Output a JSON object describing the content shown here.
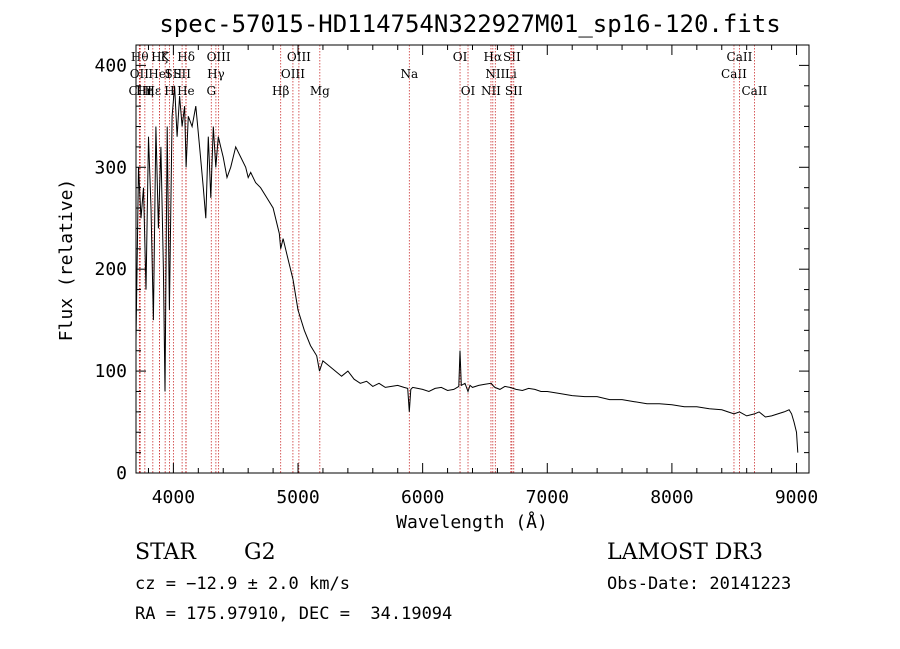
{
  "chart_data": {
    "type": "line",
    "title": "spec-57015-HD114754N322927M01_sp16-120.fits",
    "xlabel": "Wavelength (Å)",
    "ylabel": "Flux (relative)",
    "xlim": [
      3700,
      9100
    ],
    "ylim": [
      0,
      420
    ],
    "xticks": [
      4000,
      5000,
      6000,
      7000,
      8000,
      9000
    ],
    "yticks": [
      0,
      100,
      200,
      300,
      400
    ],
    "series": [
      {
        "name": "flux",
        "x": [
          3700,
          3720,
          3740,
          3760,
          3780,
          3800,
          3820,
          3840,
          3860,
          3880,
          3900,
          3920,
          3933,
          3950,
          3968,
          3990,
          4010,
          4030,
          4050,
          4070,
          4090,
          4102,
          4120,
          4150,
          4180,
          4210,
          4240,
          4260,
          4280,
          4300,
          4320,
          4340,
          4360,
          4380,
          4400,
          4430,
          4460,
          4500,
          4540,
          4580,
          4600,
          4620,
          4660,
          4700,
          4750,
          4800,
          4850,
          4861,
          4880,
          4920,
          4960,
          5000,
          5050,
          5100,
          5150,
          5172,
          5200,
          5250,
          5300,
          5350,
          5400,
          5450,
          5500,
          5550,
          5600,
          5650,
          5700,
          5750,
          5800,
          5850,
          5880,
          5893,
          5905,
          5920,
          5960,
          6000,
          6050,
          6100,
          6150,
          6200,
          6250,
          6290,
          6300,
          6310,
          6340,
          6364,
          6380,
          6400,
          6450,
          6500,
          6550,
          6563,
          6580,
          6620,
          6660,
          6700,
          6750,
          6800,
          6850,
          6900,
          6950,
          7000,
          7100,
          7200,
          7300,
          7400,
          7500,
          7600,
          7700,
          7800,
          7900,
          8000,
          8100,
          8200,
          8300,
          8400,
          8450,
          8498,
          8542,
          8600,
          8662,
          8700,
          8750,
          8800,
          8850,
          8900,
          8940,
          8960,
          8980,
          9000,
          9010
        ],
        "values": [
          130,
          300,
          250,
          280,
          180,
          330,
          260,
          150,
          340,
          240,
          320,
          200,
          80,
          340,
          160,
          350,
          380,
          330,
          370,
          340,
          360,
          300,
          350,
          340,
          360,
          320,
          280,
          250,
          330,
          270,
          340,
          300,
          330,
          320,
          310,
          290,
          300,
          320,
          310,
          300,
          290,
          295,
          285,
          280,
          270,
          260,
          235,
          220,
          230,
          210,
          190,
          160,
          140,
          125,
          115,
          100,
          110,
          105,
          100,
          95,
          100,
          92,
          88,
          90,
          85,
          88,
          84,
          85,
          86,
          84,
          83,
          60,
          82,
          84,
          83,
          82,
          80,
          83,
          84,
          81,
          82,
          85,
          120,
          86,
          88,
          80,
          86,
          84,
          86,
          87,
          88,
          86,
          84,
          82,
          85,
          84,
          82,
          81,
          83,
          82,
          80,
          80,
          78,
          76,
          75,
          75,
          72,
          72,
          70,
          68,
          68,
          67,
          65,
          65,
          63,
          62,
          60,
          58,
          60,
          56,
          58,
          60,
          55,
          56,
          58,
          60,
          62,
          58,
          50,
          40,
          20
        ]
      }
    ],
    "line_marks": [
      {
        "x": 3730,
        "label": "Hθ",
        "row": 0
      },
      {
        "x": 3727,
        "label": "OII",
        "row": 1
      },
      {
        "x": 3734,
        "label": "CIII",
        "row": 2
      },
      {
        "x": 3771,
        "label": "Hη",
        "row": 2
      },
      {
        "x": 3835,
        "label": "Hε",
        "row": 2
      },
      {
        "x": 3889,
        "label": "HeI",
        "row": 1
      },
      {
        "x": 3889,
        "label": "Hζ",
        "row": 0
      },
      {
        "x": 3934,
        "label": "K",
        "row": 0
      },
      {
        "x": 3969,
        "label": "H",
        "row": 2
      },
      {
        "x": 4000,
        "label": "SII",
        "row": 1
      },
      {
        "x": 4102,
        "label": "Hδ",
        "row": 0
      },
      {
        "x": 4070,
        "label": "SII",
        "row": 1
      },
      {
        "x": 4100,
        "label": "He",
        "row": 2
      },
      {
        "x": 4304,
        "label": "G",
        "row": 2
      },
      {
        "x": 4341,
        "label": "Hγ",
        "row": 1
      },
      {
        "x": 4363,
        "label": "OIII",
        "row": 0
      },
      {
        "x": 4861,
        "label": "Hβ",
        "row": 2
      },
      {
        "x": 4959,
        "label": "OIII",
        "row": 1
      },
      {
        "x": 5007,
        "label": "OIII",
        "row": 0
      },
      {
        "x": 5175,
        "label": "Mg",
        "row": 2
      },
      {
        "x": 5893,
        "label": "Na",
        "row": 1
      },
      {
        "x": 6300,
        "label": "OI",
        "row": 0
      },
      {
        "x": 6364,
        "label": "OI",
        "row": 2
      },
      {
        "x": 6548,
        "label": "NII",
        "row": 2
      },
      {
        "x": 6563,
        "label": "Hα",
        "row": 0
      },
      {
        "x": 6583,
        "label": "NII",
        "row": 1
      },
      {
        "x": 6708,
        "label": "Li",
        "row": 1
      },
      {
        "x": 6716,
        "label": "SII",
        "row": 0
      },
      {
        "x": 6731,
        "label": "SII",
        "row": 2
      },
      {
        "x": 8498,
        "label": "CaII",
        "row": 1
      },
      {
        "x": 8542,
        "label": "CaII",
        "row": 0
      },
      {
        "x": 8662,
        "label": "CaII",
        "row": 2
      }
    ]
  },
  "info": {
    "object_class": "STAR",
    "subclass": "G2",
    "survey": "LAMOST DR3",
    "cz": "cz = −12.9 ± 2.0 km/s",
    "obs_date": "Obs-Date: 20141223",
    "coords": "RA = 175.97910, DEC =  34.19094"
  },
  "colors": {
    "line_mark": "#cc3333",
    "spectrum": "#000000"
  }
}
